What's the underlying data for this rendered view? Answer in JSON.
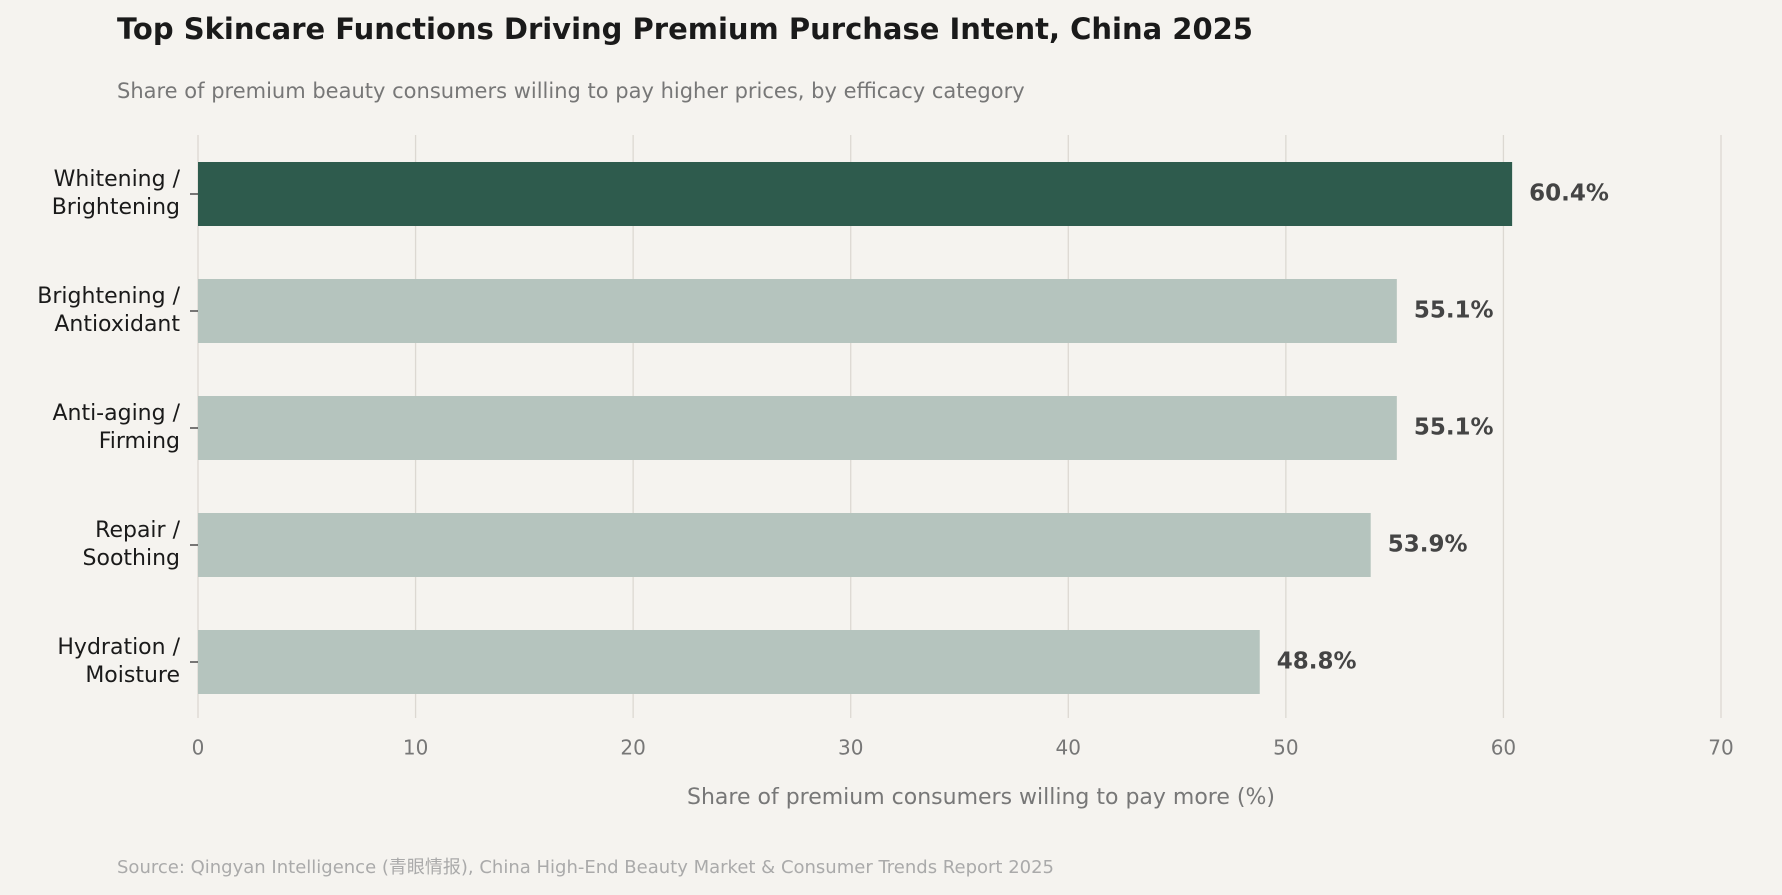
{
  "chart_data": {
    "type": "bar",
    "orientation": "horizontal",
    "title": "Top Skincare Functions Driving Premium Purchase Intent, China 2025",
    "subtitle": "Share of premium beauty consumers willing to pay higher prices, by efficacy category",
    "x_label": "Share of premium consumers willing to pay more (%)",
    "source": "Source: Qingyan Intelligence (青眼情报), China High-End Beauty Market & Consumer Trends Report 2025",
    "categories": [
      "Whitening /\nBrightening",
      "Brightening /\nAntioxidant",
      "Anti-aging /\nFirming",
      "Repair /\nSoothing",
      "Hydration /\nMoisture"
    ],
    "values": [
      60.4,
      55.1,
      55.1,
      53.9,
      48.8
    ],
    "value_labels": [
      "60.4%",
      "55.1%",
      "55.1%",
      "53.9%",
      "48.8%"
    ],
    "colors": [
      "#2e5b4d",
      "#b5c4be",
      "#b5c4be",
      "#b5c4be",
      "#b5c4be"
    ],
    "xlim": [
      0,
      70
    ],
    "xticks": [
      0,
      10,
      20,
      30,
      40,
      50,
      60,
      70
    ],
    "grid": true
  }
}
